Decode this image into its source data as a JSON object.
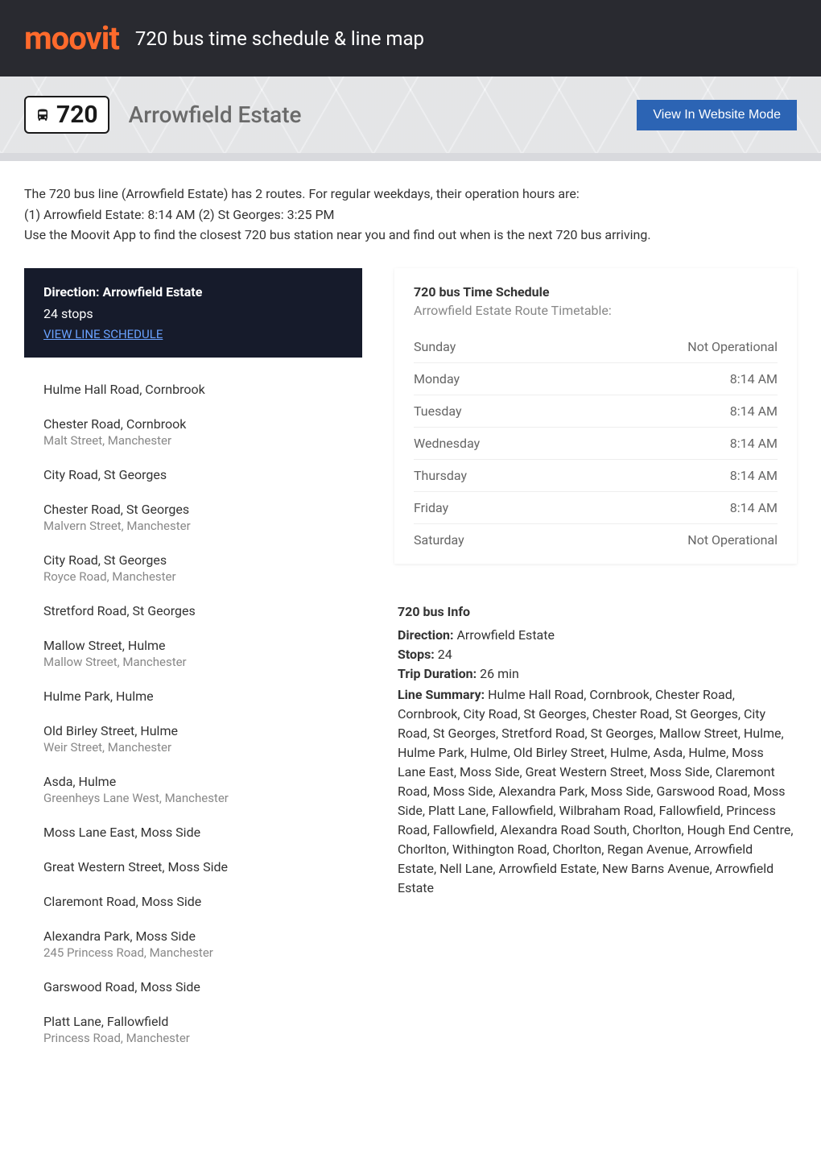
{
  "header": {
    "logo_text": "moovit",
    "title": "720 bus time schedule & line map"
  },
  "hero": {
    "route_number": "720",
    "direction": "Arrowfield Estate",
    "website_button": "View In Website Mode"
  },
  "intro": {
    "line1": "The 720 bus line (Arrowfield Estate) has 2 routes. For regular weekdays, their operation hours are:",
    "line2": "(1) Arrowfield Estate: 8:14 AM (2) St Georges: 3:25 PM",
    "line3": "Use the Moovit App to find the closest 720 bus station near you and find out when is the next 720 bus arriving."
  },
  "direction_box": {
    "title": "Direction: Arrowfield Estate",
    "stops_text": "24 stops",
    "link_text": "VIEW LINE SCHEDULE"
  },
  "stops": [
    {
      "name": "Hulme Hall Road, Cornbrook",
      "sub": ""
    },
    {
      "name": "Chester Road, Cornbrook",
      "sub": "Malt Street, Manchester"
    },
    {
      "name": "City Road, St Georges",
      "sub": ""
    },
    {
      "name": "Chester Road, St Georges",
      "sub": "Malvern Street, Manchester"
    },
    {
      "name": "City Road, St Georges",
      "sub": "Royce Road, Manchester"
    },
    {
      "name": "Stretford Road, St Georges",
      "sub": ""
    },
    {
      "name": "Mallow Street, Hulme",
      "sub": "Mallow Street, Manchester"
    },
    {
      "name": "Hulme Park, Hulme",
      "sub": ""
    },
    {
      "name": "Old Birley Street, Hulme",
      "sub": "Weir Street, Manchester"
    },
    {
      "name": "Asda, Hulme",
      "sub": "Greenheys Lane West, Manchester"
    },
    {
      "name": "Moss Lane East, Moss Side",
      "sub": ""
    },
    {
      "name": "Great Western Street, Moss Side",
      "sub": ""
    },
    {
      "name": "Claremont Road, Moss Side",
      "sub": ""
    },
    {
      "name": "Alexandra Park, Moss Side",
      "sub": "245 Princess Road, Manchester"
    },
    {
      "name": "Garswood Road, Moss Side",
      "sub": ""
    },
    {
      "name": "Platt Lane, Fallowfield",
      "sub": "Princess Road, Manchester"
    }
  ],
  "schedule": {
    "title": "720 bus Time Schedule",
    "subtitle": "Arrowfield Estate Route Timetable:",
    "rows": [
      {
        "day": "Sunday",
        "time": "Not Operational"
      },
      {
        "day": "Monday",
        "time": "8:14 AM"
      },
      {
        "day": "Tuesday",
        "time": "8:14 AM"
      },
      {
        "day": "Wednesday",
        "time": "8:14 AM"
      },
      {
        "day": "Thursday",
        "time": "8:14 AM"
      },
      {
        "day": "Friday",
        "time": "8:14 AM"
      },
      {
        "day": "Saturday",
        "time": "Not Operational"
      }
    ]
  },
  "info": {
    "title": "720 bus Info",
    "direction_label": "Direction:",
    "direction_value": " Arrowfield Estate",
    "stops_label": "Stops:",
    "stops_value": " 24",
    "duration_label": "Trip Duration:",
    "duration_value": " 26 min",
    "summary_label": "Line Summary:",
    "summary_value": " Hulme Hall Road, Cornbrook, Chester Road, Cornbrook, City Road, St Georges, Chester Road, St Georges, City Road, St Georges, Stretford Road, St Georges, Mallow Street, Hulme, Hulme Park, Hulme, Old Birley Street, Hulme, Asda, Hulme, Moss Lane East, Moss Side, Great Western Street, Moss Side, Claremont Road, Moss Side, Alexandra Park, Moss Side, Garswood Road, Moss Side, Platt Lane, Fallowfield, Wilbraham Road, Fallowfield, Princess Road, Fallowfield, Alexandra Road South, Chorlton, Hough End Centre, Chorlton, Withington Road, Chorlton, Regan Avenue, Arrowfield Estate, Nell Lane, Arrowfield Estate, New Barns Avenue, Arrowfield Estate"
  },
  "colors": {
    "header_bg": "#292a30",
    "logo_color": "#ff6a2c",
    "button_bg": "#2c64b4",
    "direction_bg": "#161b2b",
    "link_color": "#6aa2ff",
    "text_muted": "#888888",
    "border_color": "#eeeeee"
  }
}
